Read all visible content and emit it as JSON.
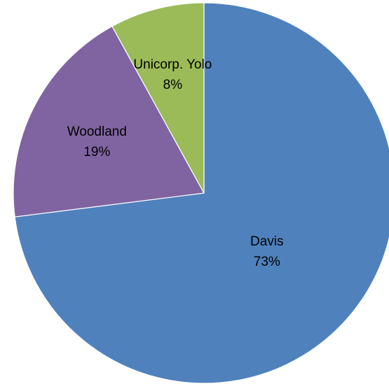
{
  "chart_data": {
    "type": "pie",
    "title": "",
    "legend": "none",
    "start_angle_deg": 0,
    "direction": "clockwise",
    "slices": [
      {
        "label": "Davis",
        "value": 73,
        "percent_label": "73%",
        "color": "#4F81BD"
      },
      {
        "label": "Woodland",
        "value": 19,
        "percent_label": "19%",
        "color": "#8064A2"
      },
      {
        "label": "Unicorp. Yolo",
        "value": 8,
        "percent_label": "8%",
        "color": "#9BBB59"
      }
    ]
  }
}
